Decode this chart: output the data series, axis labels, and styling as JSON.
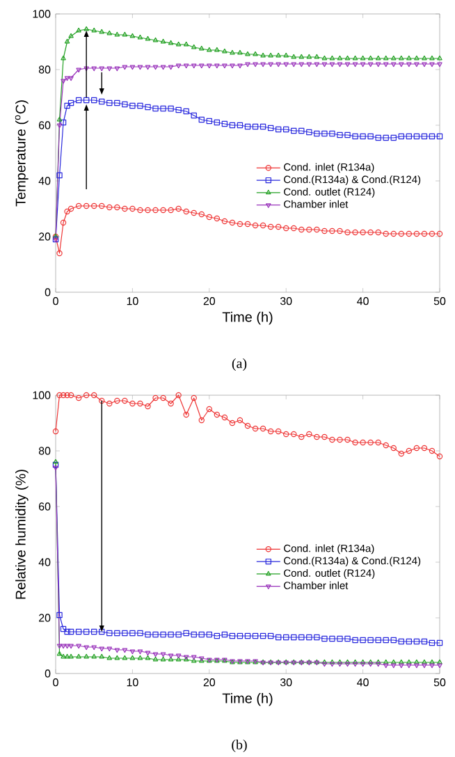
{
  "chart_data": [
    {
      "type": "line",
      "xlabel": "Time (h)",
      "ylabel": "Temperature ($^{o}$C)",
      "annotations": [
        "(a)"
      ],
      "x": [
        0,
        0.5,
        1,
        1.5,
        2,
        3,
        4,
        5,
        6,
        7,
        8,
        9,
        10,
        11,
        12,
        13,
        14,
        15,
        16,
        17,
        18,
        19,
        20,
        21,
        22,
        23,
        24,
        25,
        26,
        27,
        28,
        29,
        30,
        31,
        32,
        33,
        34,
        35,
        36,
        37,
        38,
        39,
        40,
        41,
        42,
        43,
        44,
        45,
        46,
        47,
        48,
        49,
        50
      ],
      "xlim": [
        0,
        50
      ],
      "ylim": [
        0,
        100
      ],
      "xticks": [
        0,
        10,
        20,
        30,
        40,
        50
      ],
      "yticks": [
        0,
        20,
        40,
        60,
        80,
        100
      ],
      "grid": false,
      "legend": "right",
      "series": [
        {
          "name": "Cond. inlet (R134a)",
          "color": "#ee3333",
          "marker": "circle",
          "values": [
            20,
            14,
            25,
            29,
            30,
            31,
            31,
            31,
            31,
            30.5,
            30.5,
            30,
            30,
            29.5,
            29.5,
            29.5,
            29.5,
            29.5,
            30,
            29,
            28.5,
            28,
            27,
            26.5,
            25.5,
            25,
            24.5,
            24.5,
            24,
            24,
            23.5,
            23.5,
            23,
            23,
            22.5,
            22.5,
            22.5,
            22,
            22,
            22,
            21.5,
            21.5,
            21.5,
            21.5,
            21.5,
            21,
            21,
            21,
            21,
            21,
            21,
            21,
            21
          ]
        },
        {
          "name": "Cond.(R134a) & Cond.(R124)",
          "color": "#2828dd",
          "marker": "square",
          "values": [
            19,
            42,
            61,
            67,
            68,
            69,
            69,
            69,
            68.5,
            68,
            68,
            67.5,
            67,
            67,
            66.5,
            66,
            66,
            66,
            65.5,
            65,
            63.5,
            62,
            61.5,
            61,
            60.5,
            60,
            60,
            59.5,
            59.5,
            59.5,
            59,
            58.5,
            58.5,
            58,
            58,
            57.5,
            57,
            57,
            57,
            56.5,
            56.5,
            56,
            56,
            56,
            55.5,
            55.5,
            55.5,
            56,
            56,
            56,
            56,
            56,
            56
          ]
        },
        {
          "name": "Cond. outlet (R124)",
          "color": "#22a022",
          "marker": "triangle",
          "values": [
            20,
            62,
            84,
            90,
            92,
            94,
            94.5,
            94,
            93.5,
            93,
            92.5,
            92.5,
            92,
            91.5,
            91,
            90.5,
            90,
            89.5,
            89,
            89,
            88,
            87.5,
            87,
            87,
            86.5,
            86,
            86,
            85.5,
            85.5,
            85,
            85,
            85,
            85,
            84.5,
            84.5,
            84.5,
            84.5,
            84,
            84,
            84,
            84,
            84,
            84,
            84,
            84,
            84,
            84,
            84,
            84,
            84,
            84,
            84,
            84
          ]
        },
        {
          "name": "Chamber inlet",
          "color": "#9933bb",
          "marker": "triangle-down",
          "values": [
            19,
            60,
            76,
            77,
            77,
            80,
            80.5,
            80.5,
            80.5,
            80.5,
            80.5,
            81,
            81,
            81,
            81,
            81,
            81,
            81,
            81.5,
            81.5,
            81.5,
            81.5,
            81.5,
            81.5,
            81.5,
            81.5,
            81.5,
            82,
            82,
            82,
            82,
            82,
            82,
            82,
            82,
            82,
            82,
            82,
            82,
            82,
            82,
            82,
            82,
            82,
            82,
            82,
            82,
            82,
            82,
            82,
            82,
            82,
            82
          ]
        }
      ]
    },
    {
      "type": "line",
      "xlabel": "Time (h)",
      "ylabel": "Relative humidity (%)",
      "annotations": [
        "(b)"
      ],
      "x": [
        0,
        0.5,
        1,
        1.5,
        2,
        3,
        4,
        5,
        6,
        7,
        8,
        9,
        10,
        11,
        12,
        13,
        14,
        15,
        16,
        17,
        18,
        19,
        20,
        21,
        22,
        23,
        24,
        25,
        26,
        27,
        28,
        29,
        30,
        31,
        32,
        33,
        34,
        35,
        36,
        37,
        38,
        39,
        40,
        41,
        42,
        43,
        44,
        45,
        46,
        47,
        48,
        49,
        50
      ],
      "xlim": [
        0,
        50
      ],
      "ylim": [
        0,
        100
      ],
      "xticks": [
        0,
        10,
        20,
        30,
        40,
        50
      ],
      "yticks": [
        0,
        20,
        40,
        60,
        80,
        100
      ],
      "grid": false,
      "legend": "right",
      "series": [
        {
          "name": "Cond. inlet (R134a)",
          "color": "#ee3333",
          "marker": "circle",
          "values": [
            87,
            100,
            100,
            100,
            100,
            99,
            100,
            100,
            98,
            97,
            98,
            98,
            97,
            97,
            96,
            99,
            99,
            97,
            100,
            93,
            99,
            91,
            95,
            93,
            92,
            90,
            91,
            89,
            88,
            88,
            87,
            87,
            86,
            86,
            85,
            86,
            85,
            85,
            84,
            84,
            84,
            83,
            83,
            83,
            83,
            82,
            81,
            79,
            80,
            81,
            81,
            80,
            78
          ]
        },
        {
          "name": "Cond.(R134a) & Cond.(R124)",
          "color": "#2828dd",
          "marker": "square",
          "values": [
            75,
            21,
            16,
            15,
            15,
            15,
            15,
            15,
            15,
            14.5,
            14.5,
            14.5,
            14.5,
            14.5,
            14,
            14,
            14,
            14,
            14,
            14.5,
            14,
            14,
            14,
            13.5,
            14,
            13.5,
            13.5,
            13.5,
            13.5,
            13.5,
            13.5,
            13,
            13,
            13,
            13,
            13,
            13,
            12.5,
            12.5,
            12.5,
            12.5,
            12,
            12,
            12,
            12,
            12,
            12,
            11.5,
            11.5,
            11.5,
            11.5,
            11,
            11
          ]
        },
        {
          "name": "Cond. outlet (R124)",
          "color": "#22a022",
          "marker": "triangle",
          "values": [
            76,
            7,
            6,
            6,
            6,
            6,
            6,
            6,
            6,
            5.5,
            5.5,
            5.5,
            5.5,
            5.5,
            5.5,
            5,
            5,
            5,
            5,
            5,
            4.5,
            4.5,
            4.5,
            4.5,
            4.5,
            4,
            4,
            4,
            4,
            4,
            4,
            4,
            4,
            4,
            4,
            4,
            4,
            4,
            4,
            4,
            4,
            4,
            4,
            4,
            4,
            4,
            4,
            4,
            4,
            4,
            4,
            4,
            4
          ]
        },
        {
          "name": "Chamber inlet",
          "color": "#9933bb",
          "marker": "triangle-down",
          "values": [
            74,
            10,
            10,
            10,
            10,
            10,
            9.5,
            9.5,
            9,
            9,
            8.5,
            8.5,
            8,
            8,
            7.5,
            7,
            7,
            6.5,
            6.5,
            6,
            6,
            5.5,
            5,
            5,
            5,
            4.5,
            4.5,
            4.5,
            4.5,
            4,
            4,
            4,
            4,
            4,
            4,
            4,
            4,
            3.5,
            3.5,
            3.5,
            3.5,
            3.5,
            3.5,
            3.5,
            3.5,
            3,
            3,
            3,
            3,
            3,
            3,
            3,
            3
          ]
        }
      ]
    }
  ]
}
